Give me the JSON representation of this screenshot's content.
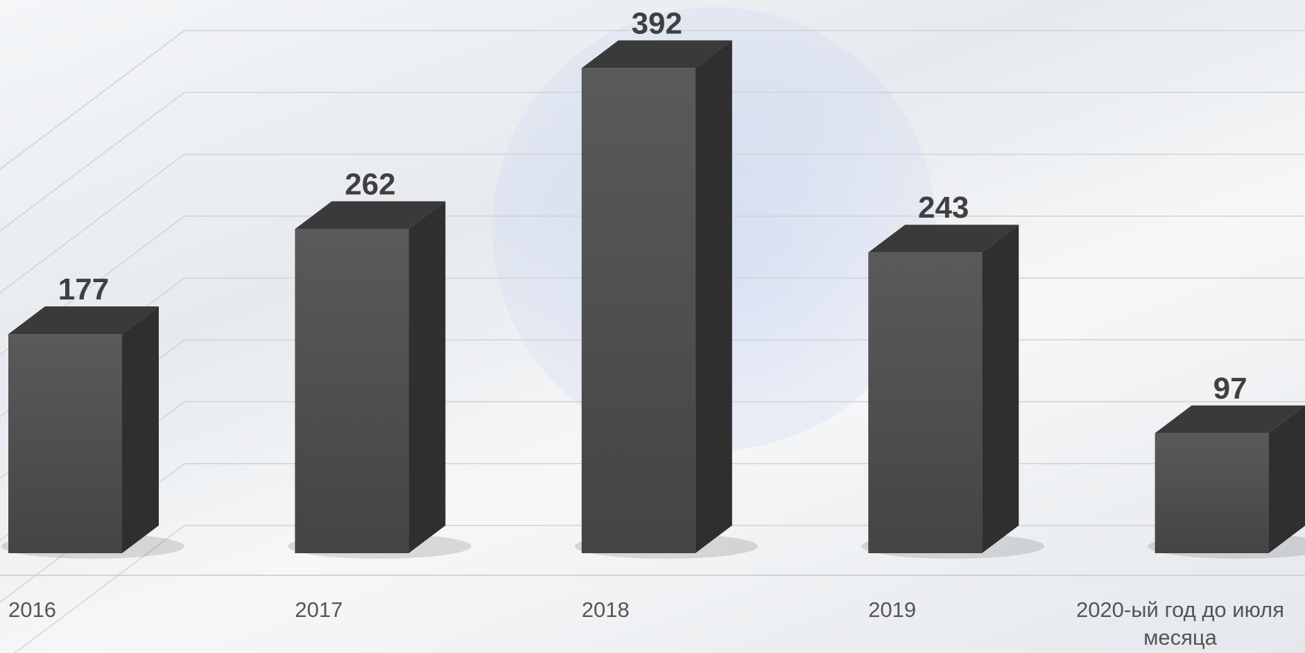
{
  "chart_data": {
    "type": "bar3d",
    "categories": [
      "2016",
      "2017",
      "2018",
      "2019",
      "2020-ый год до июля месяца"
    ],
    "values": [
      177,
      262,
      392,
      243,
      97
    ],
    "color": "#4a4a4a",
    "ylim": [
      0,
      400
    ],
    "yticks": [
      0,
      50,
      100,
      150,
      200,
      250,
      300,
      350,
      400
    ],
    "grid": true
  }
}
